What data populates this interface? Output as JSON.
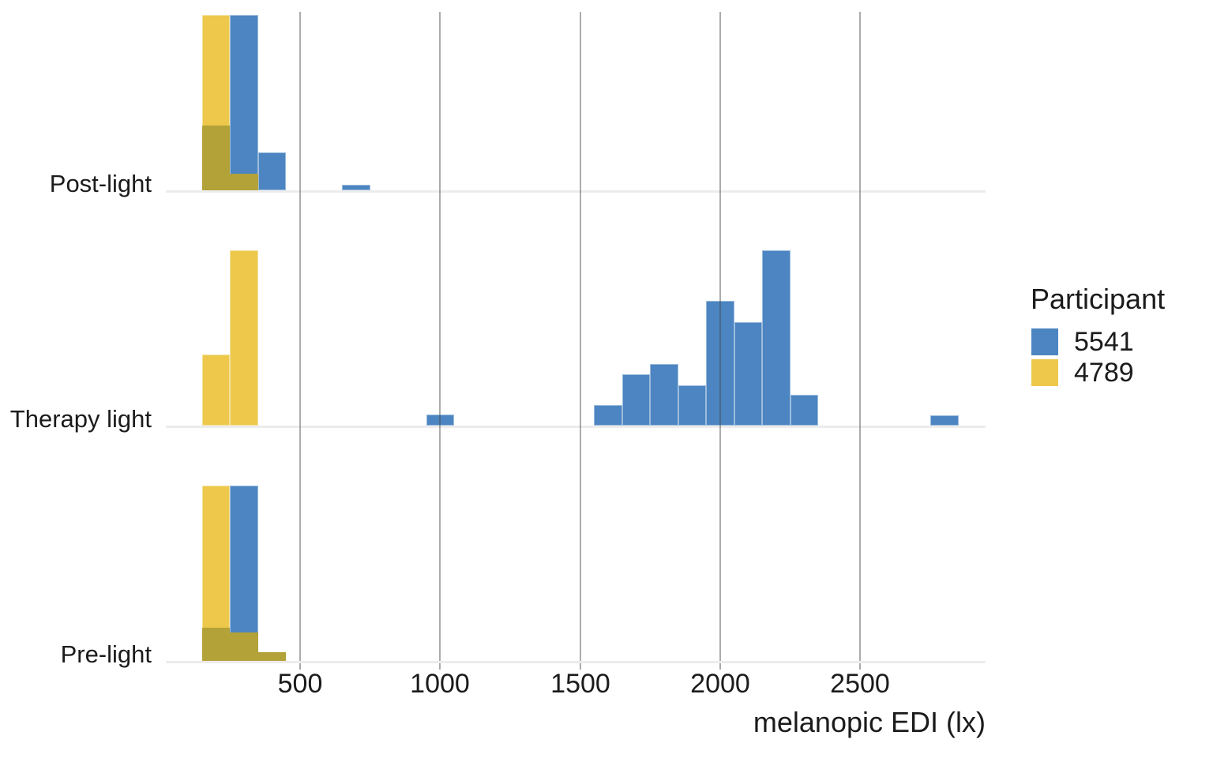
{
  "chart_data": {
    "type": "bar",
    "subtype": "overlaid-histograms-faceted-rows",
    "title": "",
    "xlabel": "melanopic EDI (lx)",
    "ylabel": "",
    "x_ticks": [
      500,
      1000,
      1500,
      2000,
      2500
    ],
    "x_range_lx": [
      0,
      2950
    ],
    "bin_width_lx": 100,
    "grid": "vertical-only",
    "height_note": "bar heights are fractions of each facet's tallest bar; no y-axis tick labels are shown in the figure",
    "facets": [
      {
        "label": "Post-light",
        "series": [
          {
            "participant": "5541",
            "bins": [
              {
                "x0": 150,
                "x1": 250,
                "h": 0.368
              },
              {
                "x0": 250,
                "x1": 350,
                "h": 1.0
              },
              {
                "x0": 350,
                "x1": 450,
                "h": 0.218
              },
              {
                "x0": 650,
                "x1": 750,
                "h": 0.033
              }
            ]
          },
          {
            "participant": "4789",
            "bins": [
              {
                "x0": 150,
                "x1": 250,
                "h": 1.0
              },
              {
                "x0": 250,
                "x1": 350,
                "h": 0.095
              }
            ]
          }
        ]
      },
      {
        "label": "Therapy light",
        "series": [
          {
            "participant": "5541",
            "bins": [
              {
                "x0": 950,
                "x1": 1050,
                "h": 0.062
              },
              {
                "x0": 1550,
                "x1": 1650,
                "h": 0.117
              },
              {
                "x0": 1650,
                "x1": 1750,
                "h": 0.295
              },
              {
                "x0": 1750,
                "x1": 1850,
                "h": 0.351
              },
              {
                "x0": 1850,
                "x1": 1950,
                "h": 0.23
              },
              {
                "x0": 1950,
                "x1": 2050,
                "h": 0.71
              },
              {
                "x0": 2050,
                "x1": 2150,
                "h": 0.592
              },
              {
                "x0": 2150,
                "x1": 2250,
                "h": 1.0
              },
              {
                "x0": 2250,
                "x1": 2350,
                "h": 0.174
              },
              {
                "x0": 2750,
                "x1": 2850,
                "h": 0.057
              }
            ]
          },
          {
            "participant": "4789",
            "bins": [
              {
                "x0": 150,
                "x1": 250,
                "h": 0.404
              },
              {
                "x0": 250,
                "x1": 350,
                "h": 1.0
              }
            ]
          }
        ]
      },
      {
        "label": "Pre-light",
        "series": [
          {
            "participant": "5541",
            "bins": [
              {
                "x0": 150,
                "x1": 250,
                "h": 0.188
              },
              {
                "x0": 250,
                "x1": 350,
                "h": 1.0
              },
              {
                "x0": 350,
                "x1": 450,
                "h": 0.05
              }
            ]
          },
          {
            "participant": "4789",
            "bins": [
              {
                "x0": 150,
                "x1": 250,
                "h": 1.0
              },
              {
                "x0": 250,
                "x1": 350,
                "h": 0.162
              },
              {
                "x0": 350,
                "x1": 450,
                "h": 0.05
              }
            ]
          }
        ]
      }
    ],
    "legend": {
      "title": "Participant",
      "position": "right",
      "entries": [
        {
          "label": "5541",
          "color": "#4C85C1"
        },
        {
          "label": "4789",
          "color": "#EDC84B"
        }
      ]
    },
    "colors": {
      "overlap": "#B3A238",
      "gridline": "rgba(70,70,70,0.45)",
      "axis_line": "#ECECEC",
      "tick_mark": "#ABABAB",
      "text": "#1b1b1b"
    }
  }
}
